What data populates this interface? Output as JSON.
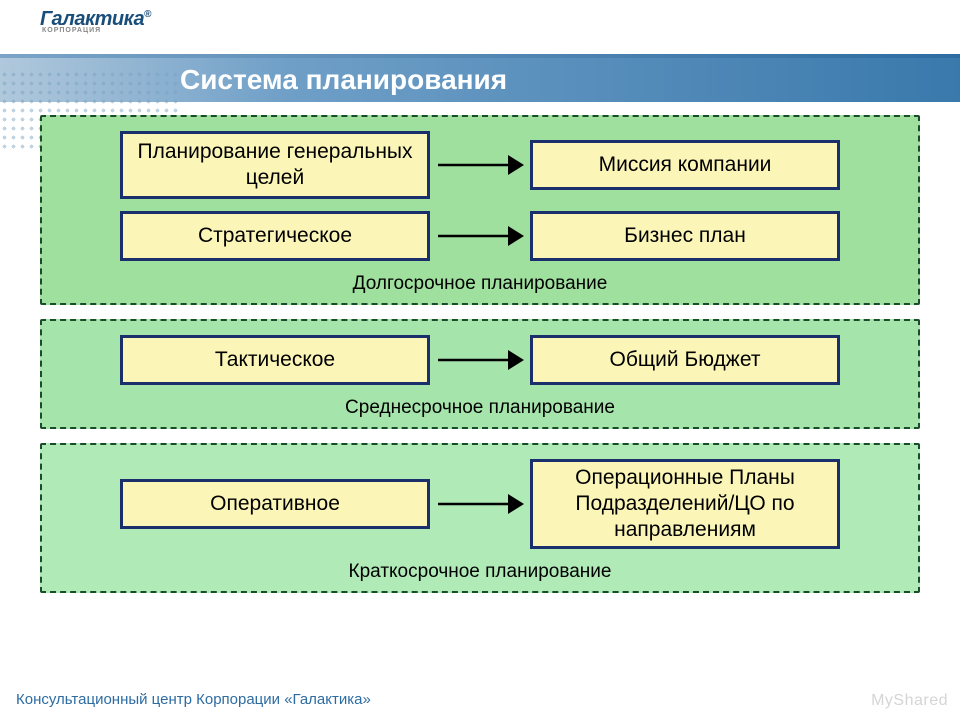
{
  "logo": {
    "text": "Галактика",
    "sub": "КОРПОРАЦИЯ",
    "reg": "®"
  },
  "title": "Система планирования",
  "footer": "Консультационный центр Корпорации «Галактика»",
  "watermark": "MyShared",
  "colors": {
    "section_bg": [
      "#9fe09f",
      "#a5e4aa",
      "#b0eab7"
    ],
    "section_border": "#1a4c2a",
    "node_fill": "#fbf6b8",
    "node_border": "#1a2f6b",
    "arrow": "#000000",
    "title_text": "#ffffff",
    "footer_text": "#2d6ca2"
  },
  "layout": {
    "node_left_w": 310,
    "node_right_w": 310,
    "arrow_w": 100,
    "node_h_single": 50,
    "node_h_double": 68,
    "node_h_triple": 90,
    "box_fontsize": 21,
    "caption_fontsize": 19,
    "title_fontsize": 28
  },
  "sections": [
    {
      "caption": "Долгосрочное планирование",
      "rows": [
        {
          "left": "Планирование генеральных целей",
          "right": "Миссия компании",
          "left_lines": 2,
          "right_lines": 1
        },
        {
          "left": "Стратегическое",
          "right": "Бизнес план",
          "left_lines": 1,
          "right_lines": 1
        }
      ]
    },
    {
      "caption": "Среднесрочное планирование",
      "rows": [
        {
          "left": "Тактическое",
          "right": "Общий Бюджет",
          "left_lines": 1,
          "right_lines": 1
        }
      ]
    },
    {
      "caption": "Краткосрочное планирование",
      "rows": [
        {
          "left": "Оперативное",
          "right": "Операционные Планы Подразделений/ЦО по направлениям",
          "left_lines": 1,
          "right_lines": 3
        }
      ]
    }
  ]
}
